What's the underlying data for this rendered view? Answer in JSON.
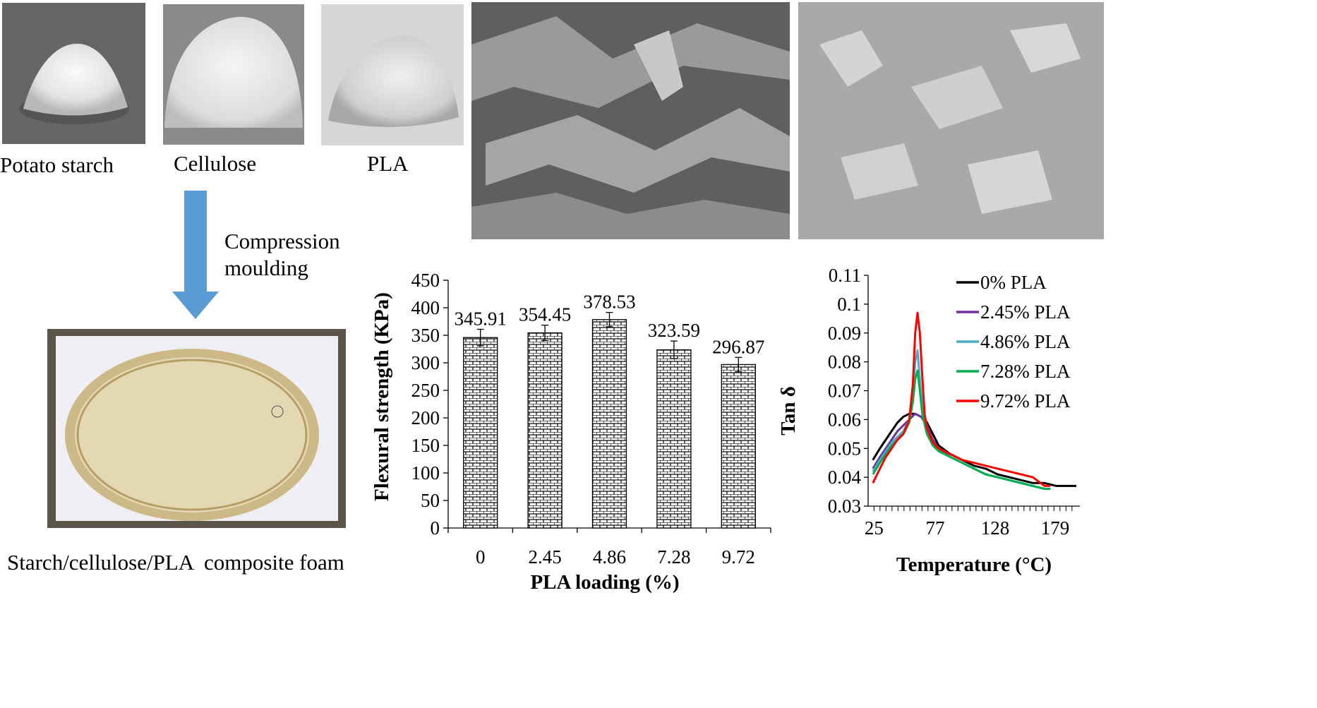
{
  "powders": [
    {
      "label": "Potato starch",
      "icon": "potato-starch-powder-photo"
    },
    {
      "label": "Cellulose",
      "icon": "cellulose-powder-photo"
    },
    {
      "label": "PLA",
      "icon": "pla-powder-photo"
    }
  ],
  "process": {
    "line1": "Compression",
    "line2": "moulding",
    "arrow_color": "#5b9bd5"
  },
  "product": {
    "label": "Starch/cellulose/PLA  composite foam",
    "plate_mark": "14"
  },
  "sem_images": [
    {
      "icon": "sem-micrograph-fibrous-photo"
    },
    {
      "icon": "sem-micrograph-surface-photo"
    }
  ],
  "chart_data": [
    {
      "type": "bar",
      "categories": [
        "0",
        "2.45",
        "4.86",
        "7.28",
        "9.72"
      ],
      "values": [
        345.91,
        354.45,
        378.53,
        323.59,
        296.87
      ],
      "value_labels": [
        "345.91",
        "354.45",
        "378.53",
        "323.59",
        "296.87"
      ],
      "errors": [
        15,
        14,
        13,
        16,
        13
      ],
      "xlabel": "PLA loading (%)",
      "ylabel": "Flexural strength (KPa)",
      "ylim": [
        0,
        450
      ],
      "yticks": [
        "0",
        "50",
        "100",
        "150",
        "200",
        "250",
        "300",
        "350",
        "400",
        "450"
      ],
      "fill_pattern": "brick-hatch",
      "grid": false
    },
    {
      "type": "line",
      "xlabel": "Temperature  (°C)",
      "ylabel": "Tan δ",
      "xlim": [
        20,
        200
      ],
      "ylim": [
        0.03,
        0.11
      ],
      "xticks": [
        "25",
        "77",
        "128",
        "179"
      ],
      "yticks": [
        "0.03",
        "0.04",
        "0.05",
        "0.06",
        "0.07",
        "0.08",
        "0.09",
        "0.1",
        "0.11"
      ],
      "legend_position": "top-right",
      "grid": false,
      "series": [
        {
          "name": "0% PLA",
          "color": "#000000",
          "x": [
            24,
            30,
            35,
            40,
            45,
            50,
            55,
            60,
            65,
            70,
            75,
            80,
            90,
            100,
            110,
            120,
            130,
            140,
            150,
            160,
            170,
            180,
            190,
            197
          ],
          "y": [
            0.046,
            0.05,
            0.053,
            0.056,
            0.059,
            0.061,
            0.062,
            0.062,
            0.061,
            0.059,
            0.055,
            0.051,
            0.048,
            0.046,
            0.044,
            0.043,
            0.041,
            0.04,
            0.039,
            0.038,
            0.038,
            0.037,
            0.037,
            0.037
          ]
        },
        {
          "name": "2.45% PLA",
          "color": "#7030a0",
          "x": [
            24,
            30,
            35,
            40,
            45,
            50,
            55,
            60,
            65,
            70,
            75,
            80,
            90,
            100,
            110,
            120,
            130,
            140,
            150,
            160,
            170,
            175
          ],
          "y": [
            0.043,
            0.047,
            0.05,
            0.053,
            0.056,
            0.058,
            0.06,
            0.062,
            0.061,
            0.058,
            0.053,
            0.05,
            0.047,
            0.045,
            0.043,
            0.041,
            0.04,
            0.039,
            0.038,
            0.037,
            0.036,
            0.036
          ]
        },
        {
          "name": "4.86% PLA",
          "color": "#4bacc6",
          "x": [
            24,
            30,
            35,
            40,
            45,
            50,
            55,
            58,
            60,
            62,
            64,
            66,
            70,
            75,
            80,
            90,
            100,
            110,
            120,
            130,
            140,
            150,
            160,
            170,
            175
          ],
          "y": [
            0.042,
            0.046,
            0.049,
            0.052,
            0.054,
            0.056,
            0.06,
            0.068,
            0.08,
            0.084,
            0.074,
            0.064,
            0.056,
            0.052,
            0.049,
            0.047,
            0.045,
            0.043,
            0.041,
            0.04,
            0.039,
            0.038,
            0.037,
            0.036,
            0.036
          ]
        },
        {
          "name": "7.28% PLA",
          "color": "#00b050",
          "x": [
            24,
            30,
            35,
            40,
            45,
            50,
            55,
            58,
            60,
            62,
            64,
            66,
            70,
            75,
            80,
            90,
            100,
            110,
            120,
            130,
            140,
            150,
            160,
            170,
            175
          ],
          "y": [
            0.041,
            0.045,
            0.048,
            0.051,
            0.053,
            0.055,
            0.059,
            0.066,
            0.074,
            0.077,
            0.07,
            0.062,
            0.055,
            0.051,
            0.049,
            0.047,
            0.045,
            0.043,
            0.041,
            0.04,
            0.039,
            0.038,
            0.037,
            0.036,
            0.036
          ]
        },
        {
          "name": "9.72% PLA",
          "color": "#ff0000",
          "x": [
            24,
            30,
            35,
            40,
            45,
            50,
            55,
            58,
            60,
            62,
            64,
            66,
            68,
            70,
            75,
            80,
            90,
            100,
            110,
            120,
            130,
            140,
            150,
            160,
            170,
            175
          ],
          "y": [
            0.038,
            0.043,
            0.047,
            0.05,
            0.053,
            0.055,
            0.06,
            0.072,
            0.09,
            0.097,
            0.09,
            0.075,
            0.062,
            0.057,
            0.052,
            0.05,
            0.048,
            0.046,
            0.045,
            0.044,
            0.043,
            0.042,
            0.041,
            0.04,
            0.037,
            0.037
          ]
        }
      ]
    }
  ]
}
